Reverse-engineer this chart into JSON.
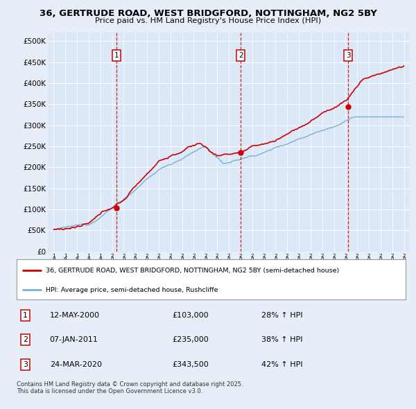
{
  "title": "36, GERTRUDE ROAD, WEST BRIDGFORD, NOTTINGHAM, NG2 5BY",
  "subtitle": "Price paid vs. HM Land Registry's House Price Index (HPI)",
  "bg_color": "#e8eef8",
  "plot_bg_color": "#dce8f8",
  "grid_color": "#ffffff",
  "red_line_color": "#cc0000",
  "blue_line_color": "#7ab0d4",
  "ylim": [
    0,
    520000
  ],
  "yticks": [
    0,
    50000,
    100000,
    150000,
    200000,
    250000,
    300000,
    350000,
    400000,
    450000,
    500000
  ],
  "ytick_labels": [
    "£0",
    "£50K",
    "£100K",
    "£150K",
    "£200K",
    "£250K",
    "£300K",
    "£350K",
    "£400K",
    "£450K",
    "£500K"
  ],
  "sale_year_floats": [
    2000.37,
    2011.02,
    2020.23
  ],
  "sale_prices": [
    103000,
    235000,
    343500
  ],
  "sale_labels": [
    "1",
    "2",
    "3"
  ],
  "sale_hpi_pct": [
    "28% ↑ HPI",
    "38% ↑ HPI",
    "42% ↑ HPI"
  ],
  "sale_date_labels": [
    "12-MAY-2000",
    "07-JAN-2011",
    "24-MAR-2020"
  ],
  "legend_entries": [
    "36, GERTRUDE ROAD, WEST BRIDGFORD, NOTTINGHAM, NG2 5BY (semi-detached house)",
    "HPI: Average price, semi-detached house, Rushcliffe"
  ],
  "footer": "Contains HM Land Registry data © Crown copyright and database right 2025.\nThis data is licensed under the Open Government Licence v3.0.",
  "xlim": [
    1994.5,
    2025.5
  ]
}
